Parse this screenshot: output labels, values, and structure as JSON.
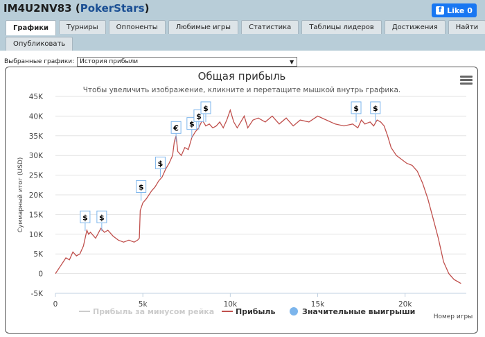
{
  "header": {
    "player": "IM4U2NV83",
    "site": "PokerStars",
    "open_paren": "(",
    "close_paren": ")"
  },
  "facebook": {
    "label": "Like 0",
    "icon": "facebook-like-icon"
  },
  "tabs": [
    {
      "label": "Графики",
      "active": true
    },
    {
      "label": "Турниры"
    },
    {
      "label": "Оппоненты"
    },
    {
      "label": "Любимые игры"
    },
    {
      "label": "Статистика"
    },
    {
      "label": "Таблицы лидеров"
    },
    {
      "label": "Достижения"
    },
    {
      "label": "Найти"
    }
  ],
  "publish_tab": "Опубликовать",
  "graph_select": {
    "label": "Выбранные графики:",
    "value": "История прибыли"
  },
  "chart_data": {
    "type": "line",
    "title": "Общая прибыль",
    "subtitle": "Чтобы увеличить изображение, кликните и перетащите мышкой внутрь графика.",
    "ylabel": "Суммарный итог (USD)",
    "xlabel": "Номер игры",
    "ylim": [
      -5000,
      45000
    ],
    "xlim": [
      0,
      23500
    ],
    "y_ticks": [
      -5000,
      0,
      5000,
      10000,
      15000,
      20000,
      25000,
      30000,
      35000,
      40000,
      45000
    ],
    "y_tick_labels": [
      "-5K",
      "0",
      "5K",
      "10K",
      "15K",
      "20K",
      "25K",
      "30K",
      "35K",
      "40K",
      "45K"
    ],
    "x_ticks": [
      0,
      5000,
      10000,
      15000,
      20000
    ],
    "x_tick_labels": [
      "0",
      "5k",
      "10k",
      "15k",
      "20k"
    ],
    "grid": true,
    "legend_placement": "bottom",
    "series": [
      {
        "name": "Прибыль за минусом рейка",
        "color": "#cccccc",
        "values": []
      },
      {
        "name": "Прибыль",
        "color": "#c0504d",
        "x": [
          0,
          300,
          600,
          800,
          1000,
          1200,
          1400,
          1600,
          1800,
          1900,
          2000,
          2300,
          2600,
          2800,
          3000,
          3300,
          3600,
          3900,
          4200,
          4500,
          4700,
          4800,
          4850,
          5000,
          5200,
          5500,
          5700,
          5900,
          6100,
          6300,
          6500,
          6700,
          6800,
          6900,
          7000,
          7200,
          7400,
          7600,
          7800,
          8000,
          8200,
          8400,
          8600,
          8800,
          9000,
          9200,
          9400,
          9600,
          9800,
          10000,
          10200,
          10400,
          10600,
          10800,
          11000,
          11300,
          11600,
          12000,
          12400,
          12800,
          13200,
          13600,
          14000,
          14500,
          15000,
          15500,
          16000,
          16500,
          17000,
          17300,
          17500,
          17700,
          18000,
          18200,
          18400,
          18600,
          18800,
          19000,
          19200,
          19500,
          19800,
          20100,
          20400,
          20700,
          21000,
          21300,
          21600,
          21900,
          22200,
          22500,
          22800,
          23000,
          23200
        ],
        "values": [
          0,
          2000,
          4000,
          3500,
          5500,
          4500,
          5000,
          7000,
          11000,
          10000,
          10500,
          9000,
          11500,
          10500,
          11000,
          9500,
          8500,
          8000,
          8500,
          8000,
          8500,
          9000,
          16000,
          18000,
          19000,
          21000,
          22000,
          23500,
          24500,
          26500,
          28000,
          30000,
          33500,
          35000,
          31000,
          30000,
          32000,
          31500,
          34500,
          36000,
          37000,
          39000,
          37500,
          38000,
          37000,
          37500,
          38500,
          37000,
          39000,
          41500,
          38500,
          37000,
          38500,
          40000,
          37000,
          39000,
          39500,
          38500,
          40000,
          38000,
          39500,
          37500,
          39000,
          38500,
          40000,
          39000,
          38000,
          37500,
          38000,
          37000,
          39000,
          38000,
          38500,
          37500,
          39000,
          38500,
          37500,
          35000,
          32000,
          30000,
          29000,
          28000,
          27500,
          26000,
          23000,
          19000,
          14000,
          9000,
          3000,
          0,
          -1500,
          -2000,
          -2500
        ]
      },
      {
        "name": "Значительные выигрыши",
        "color": "#7cb5ec",
        "values": []
      }
    ],
    "annotations": [
      {
        "x": 1700,
        "y": 10800,
        "label": "$"
      },
      {
        "x": 2650,
        "y": 10800,
        "label": "$"
      },
      {
        "x": 4900,
        "y": 18500,
        "label": "$"
      },
      {
        "x": 6000,
        "y": 24500,
        "label": "$"
      },
      {
        "x": 6900,
        "y": 33500,
        "label": "€"
      },
      {
        "x": 7800,
        "y": 34500,
        "label": "$"
      },
      {
        "x": 8200,
        "y": 36500,
        "label": "$"
      },
      {
        "x": 8600,
        "y": 38500,
        "label": "$"
      },
      {
        "x": 17200,
        "y": 38500,
        "label": "$"
      },
      {
        "x": 18300,
        "y": 38500,
        "label": "$"
      }
    ]
  }
}
